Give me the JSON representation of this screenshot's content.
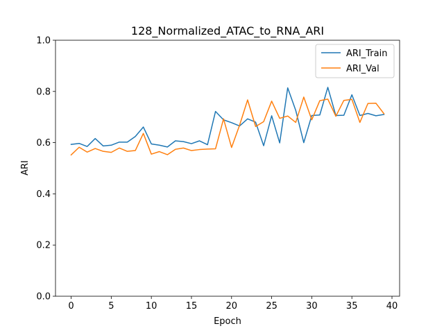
{
  "chart_data": {
    "type": "line",
    "title": "128_Normalized_ATAC_to_RNA_ARI",
    "xlabel": "Epoch",
    "ylabel": "ARI",
    "xlim": [
      -1.95,
      40.95
    ],
    "ylim": [
      0.0,
      1.0
    ],
    "xticks": [
      0,
      5,
      10,
      15,
      20,
      25,
      30,
      35,
      40
    ],
    "yticks": [
      0.0,
      0.2,
      0.4,
      0.6,
      0.8,
      1.0
    ],
    "xtick_labels": [
      "0",
      "5",
      "10",
      "15",
      "20",
      "25",
      "30",
      "35",
      "40"
    ],
    "ytick_labels": [
      "0.0",
      "0.2",
      "0.4",
      "0.6",
      "0.8",
      "1.0"
    ],
    "grid": false,
    "legend_position": "top-right",
    "x": [
      0,
      1,
      2,
      3,
      4,
      5,
      6,
      7,
      8,
      9,
      10,
      11,
      12,
      13,
      14,
      15,
      16,
      17,
      18,
      19,
      20,
      21,
      22,
      23,
      24,
      25,
      26,
      27,
      28,
      29,
      30,
      31,
      32,
      33,
      34,
      35,
      36,
      37,
      38,
      39
    ],
    "series": [
      {
        "name": "ARI_Train",
        "color": "#1f77b4",
        "values": [
          0.593,
          0.597,
          0.585,
          0.616,
          0.587,
          0.59,
          0.602,
          0.602,
          0.624,
          0.661,
          0.595,
          0.59,
          0.583,
          0.607,
          0.604,
          0.596,
          0.607,
          0.592,
          0.722,
          0.689,
          0.678,
          0.665,
          0.693,
          0.68,
          0.588,
          0.705,
          0.599,
          0.814,
          0.726,
          0.6,
          0.706,
          0.708,
          0.816,
          0.706,
          0.707,
          0.787,
          0.706,
          0.714,
          0.705,
          0.71
        ]
      },
      {
        "name": "ARI_Val",
        "color": "#ff7f0e",
        "values": [
          0.552,
          0.582,
          0.563,
          0.577,
          0.566,
          0.562,
          0.579,
          0.566,
          0.569,
          0.636,
          0.555,
          0.565,
          0.553,
          0.574,
          0.579,
          0.569,
          0.573,
          0.575,
          0.576,
          0.693,
          0.581,
          0.668,
          0.767,
          0.663,
          0.682,
          0.762,
          0.695,
          0.704,
          0.679,
          0.778,
          0.689,
          0.764,
          0.77,
          0.703,
          0.765,
          0.769,
          0.679,
          0.753,
          0.754,
          0.713
        ]
      }
    ]
  }
}
